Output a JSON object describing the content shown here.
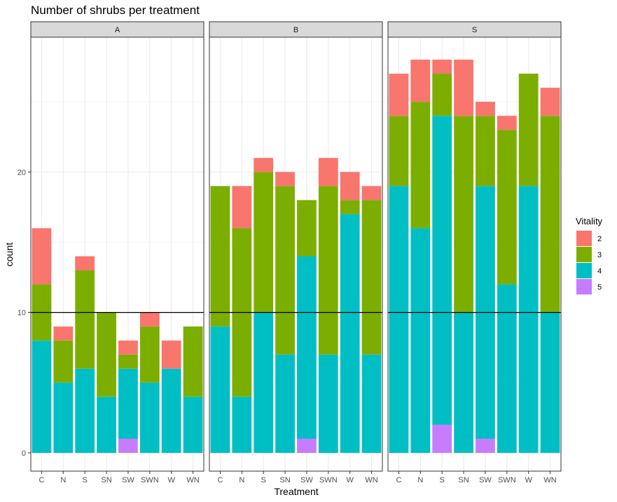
{
  "chart_data": {
    "type": "bar",
    "stacked": true,
    "title": "Number of shrubs per treatment",
    "xlabel": "Treatment",
    "ylabel": "count",
    "ylim": [
      -1.3,
      29.6
    ],
    "yticks": [
      0,
      10,
      20
    ],
    "hline": 10,
    "grid": true,
    "legend": {
      "title": "Vitality",
      "position": "right"
    },
    "categories": [
      "C",
      "N",
      "S",
      "SN",
      "SW",
      "SWN",
      "W",
      "WN"
    ],
    "stack_order": [
      "5",
      "4",
      "3",
      "2"
    ],
    "series_colors": {
      "2": "#F8766D",
      "3": "#7CAE00",
      "4": "#00BFC4",
      "5": "#C77CFF"
    },
    "facets": [
      {
        "label": "A",
        "series": [
          {
            "name": "2",
            "values": [
              4,
              1,
              1,
              0,
              1,
              1,
              2,
              0
            ]
          },
          {
            "name": "3",
            "values": [
              4,
              3,
              7,
              6,
              1,
              4,
              0,
              5
            ]
          },
          {
            "name": "4",
            "values": [
              8,
              5,
              6,
              4,
              5,
              5,
              6,
              4
            ]
          },
          {
            "name": "5",
            "values": [
              0,
              0,
              0,
              0,
              1,
              0,
              0,
              0
            ]
          }
        ]
      },
      {
        "label": "B",
        "series": [
          {
            "name": "2",
            "values": [
              0,
              3,
              1,
              1,
              0,
              2,
              2,
              1
            ]
          },
          {
            "name": "3",
            "values": [
              10,
              12,
              10,
              12,
              4,
              12,
              1,
              11
            ]
          },
          {
            "name": "4",
            "values": [
              9,
              4,
              10,
              7,
              13,
              7,
              17,
              7
            ]
          },
          {
            "name": "5",
            "values": [
              0,
              0,
              0,
              0,
              1,
              0,
              0,
              0
            ]
          }
        ]
      },
      {
        "label": "S",
        "series": [
          {
            "name": "2",
            "values": [
              3,
              3,
              1,
              4,
              1,
              1,
              0,
              2
            ]
          },
          {
            "name": "3",
            "values": [
              5,
              9,
              3,
              14,
              5,
              11,
              8,
              14
            ]
          },
          {
            "name": "4",
            "values": [
              19,
              16,
              22,
              10,
              18,
              12,
              19,
              10
            ]
          },
          {
            "name": "5",
            "values": [
              0,
              0,
              2,
              0,
              1,
              0,
              0,
              0
            ]
          }
        ]
      }
    ]
  }
}
